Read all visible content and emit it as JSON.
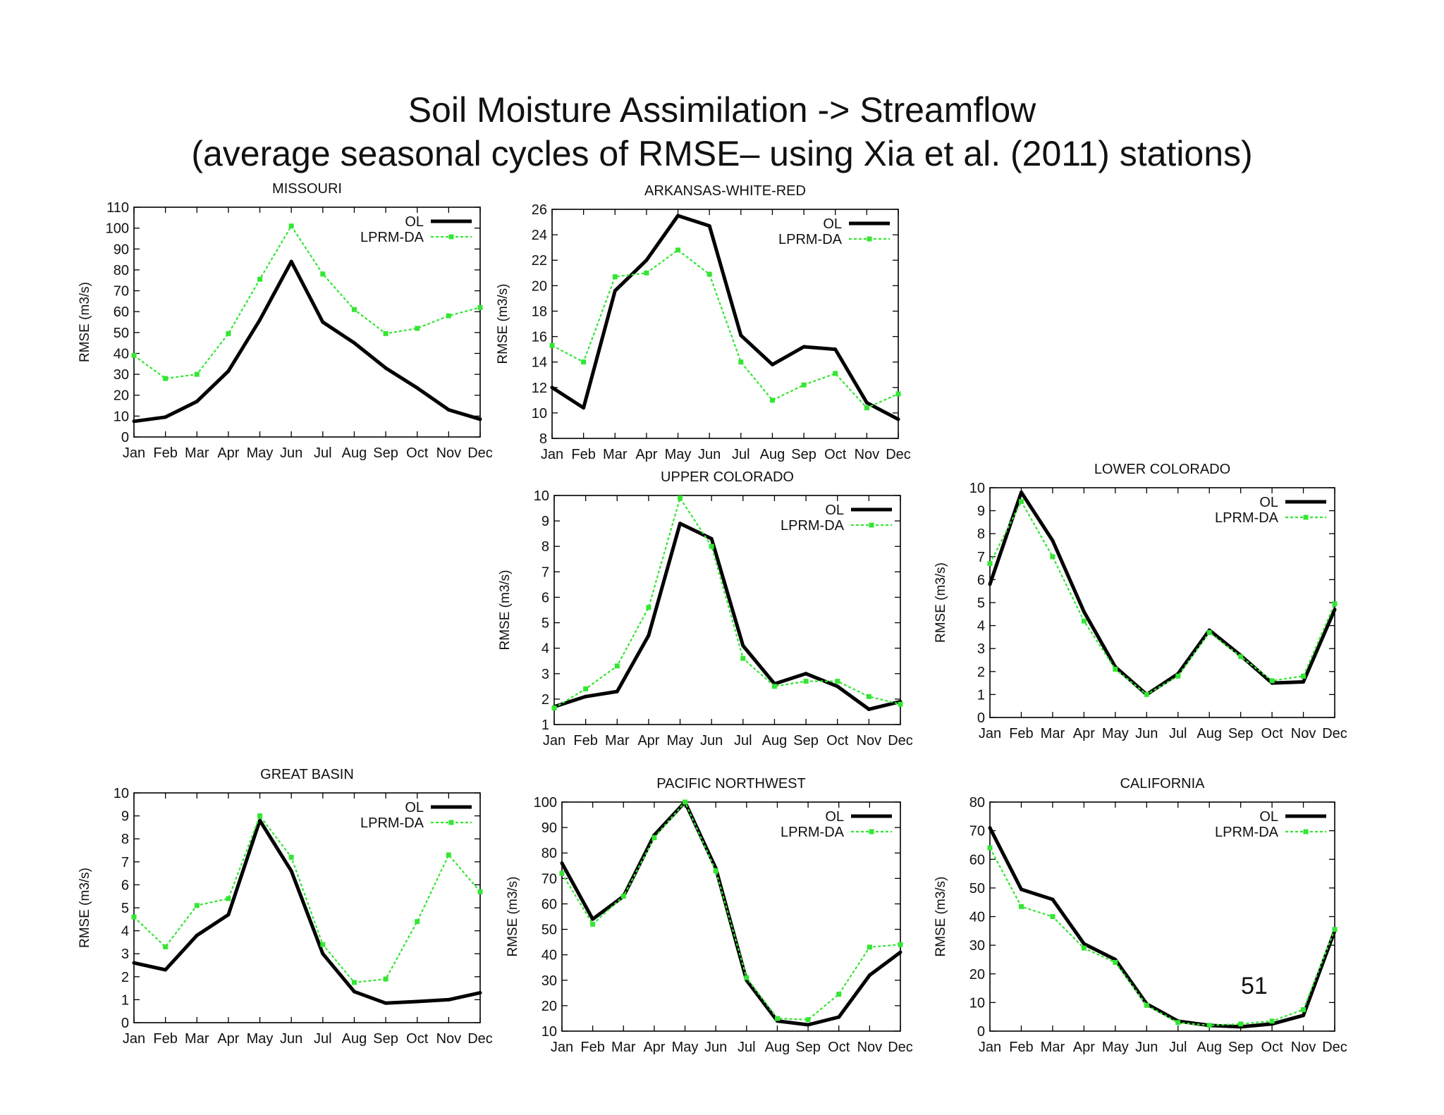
{
  "slide": {
    "title_line1": "Soil Moisture Assimilation -> Streamflow",
    "title_line2": "(average seasonal cycles of RMSE– using Xia et al. (2011) stations)",
    "page_number": "51"
  },
  "colors": {
    "ol": "#000000",
    "lprm_da": "#33e633",
    "axis": "#000000"
  },
  "chart_data": [
    {
      "id": "missouri",
      "type": "line",
      "title": "MISSOURI",
      "xlabel": "",
      "ylabel": "RMSE (m3/s)",
      "categories": [
        "Jan",
        "Feb",
        "Mar",
        "Apr",
        "May",
        "Jun",
        "Jul",
        "Aug",
        "Sep",
        "Oct",
        "Nov",
        "Dec"
      ],
      "ylim": [
        0,
        110
      ],
      "yticks": [
        0,
        10,
        20,
        30,
        40,
        50,
        60,
        70,
        80,
        90,
        100,
        110
      ],
      "legend": "top-right",
      "grid": false,
      "series": [
        {
          "name": "OL",
          "values": [
            7.5,
            9.5,
            17,
            31.5,
            56,
            84,
            55,
            45,
            33,
            23.5,
            13,
            8.5
          ]
        },
        {
          "name": "LPRM-DA",
          "values": [
            39,
            28,
            30,
            49.5,
            75.5,
            101,
            78,
            61,
            49.5,
            52,
            58,
            62
          ]
        }
      ]
    },
    {
      "id": "arkansas",
      "type": "line",
      "title": "ARKANSAS-WHITE-RED",
      "xlabel": "",
      "ylabel": "RMSE (m3/s)",
      "categories": [
        "Jan",
        "Feb",
        "Mar",
        "Apr",
        "May",
        "Jun",
        "Jul",
        "Aug",
        "Sep",
        "Oct",
        "Nov",
        "Dec"
      ],
      "ylim": [
        8,
        26
      ],
      "yticks": [
        8,
        10,
        12,
        14,
        16,
        18,
        20,
        22,
        24,
        26
      ],
      "legend": "top-right",
      "grid": false,
      "series": [
        {
          "name": "OL",
          "values": [
            12,
            10.4,
            19.6,
            22,
            25.5,
            24.7,
            16.1,
            13.8,
            15.2,
            15,
            10.8,
            9.5
          ]
        },
        {
          "name": "LPRM-DA",
          "values": [
            15.3,
            14,
            20.7,
            21,
            22.8,
            20.9,
            14,
            11,
            12.2,
            13.1,
            10.4,
            11.5
          ]
        }
      ]
    },
    {
      "id": "upper-colorado",
      "type": "line",
      "title": "UPPER COLORADO",
      "xlabel": "",
      "ylabel": "RMSE (m3/s)",
      "categories": [
        "Jan",
        "Feb",
        "Mar",
        "Apr",
        "May",
        "Jun",
        "Jul",
        "Aug",
        "Sep",
        "Oct",
        "Nov",
        "Dec"
      ],
      "ylim": [
        1,
        10
      ],
      "yticks": [
        1,
        2,
        3,
        4,
        5,
        6,
        7,
        8,
        9,
        10
      ],
      "legend": "top-right",
      "grid": false,
      "series": [
        {
          "name": "OL",
          "values": [
            1.7,
            2.1,
            2.3,
            4.5,
            8.9,
            8.3,
            4.1,
            2.6,
            3,
            2.5,
            1.6,
            1.9
          ]
        },
        {
          "name": "LPRM-DA",
          "values": [
            1.65,
            2.4,
            3.3,
            5.6,
            9.9,
            8,
            3.6,
            2.5,
            2.7,
            2.7,
            2.1,
            1.8
          ]
        }
      ]
    },
    {
      "id": "lower-colorado",
      "type": "line",
      "title": "LOWER COLORADO",
      "xlabel": "",
      "ylabel": "RMSE (m3/s)",
      "categories": [
        "Jan",
        "Feb",
        "Mar",
        "Apr",
        "May",
        "Jun",
        "Jul",
        "Aug",
        "Sep",
        "Oct",
        "Nov",
        "Dec"
      ],
      "ylim": [
        0,
        10
      ],
      "yticks": [
        0,
        1,
        2,
        3,
        4,
        5,
        6,
        7,
        8,
        9,
        10
      ],
      "legend": "top-right",
      "grid": false,
      "series": [
        {
          "name": "OL",
          "values": [
            5.8,
            9.8,
            7.7,
            4.6,
            2.2,
            1,
            1.9,
            3.8,
            2.7,
            1.5,
            1.55,
            4.7
          ]
        },
        {
          "name": "LPRM-DA",
          "values": [
            6.7,
            9.4,
            7,
            4.2,
            2.1,
            1,
            1.8,
            3.7,
            2.65,
            1.6,
            1.8,
            4.95
          ]
        }
      ]
    },
    {
      "id": "great-basin",
      "type": "line",
      "title": "GREAT BASIN",
      "xlabel": "",
      "ylabel": "RMSE (m3/s)",
      "categories": [
        "Jan",
        "Feb",
        "Mar",
        "Apr",
        "May",
        "Jun",
        "Jul",
        "Aug",
        "Sep",
        "Oct",
        "Nov",
        "Dec"
      ],
      "ylim": [
        0,
        10
      ],
      "yticks": [
        0,
        1,
        2,
        3,
        4,
        5,
        6,
        7,
        8,
        9,
        10
      ],
      "legend": "top-right",
      "grid": false,
      "series": [
        {
          "name": "OL",
          "values": [
            2.6,
            2.3,
            3.8,
            4.7,
            8.8,
            6.6,
            3,
            1.35,
            0.85,
            0.92,
            1,
            1.3
          ]
        },
        {
          "name": "LPRM-DA",
          "values": [
            4.6,
            3.3,
            5.1,
            5.4,
            9,
            7.2,
            3.4,
            1.75,
            1.9,
            4.4,
            7.3,
            5.7
          ]
        }
      ]
    },
    {
      "id": "pacific-northwest",
      "type": "line",
      "title": "PACIFIC NORTHWEST",
      "xlabel": "",
      "ylabel": "RMSE (m3/s)",
      "categories": [
        "Jan",
        "Feb",
        "Mar",
        "Apr",
        "May",
        "Jun",
        "Jul",
        "Aug",
        "Sep",
        "Oct",
        "Nov",
        "Dec"
      ],
      "ylim": [
        10,
        100
      ],
      "yticks": [
        10,
        20,
        30,
        40,
        50,
        60,
        70,
        80,
        90,
        100
      ],
      "legend": "top-right",
      "grid": false,
      "series": [
        {
          "name": "OL",
          "values": [
            76,
            54,
            63,
            87,
            100,
            74,
            30,
            14,
            12.5,
            15.5,
            32,
            41
          ]
        },
        {
          "name": "LPRM-DA",
          "values": [
            72,
            52,
            63,
            86,
            100,
            73,
            31,
            15,
            14.5,
            24.5,
            43,
            44
          ]
        }
      ]
    },
    {
      "id": "california",
      "type": "line",
      "title": "CALIFORNIA",
      "xlabel": "",
      "ylabel": "RMSE (m3/s)",
      "categories": [
        "Jan",
        "Feb",
        "Mar",
        "Apr",
        "May",
        "Jun",
        "Jul",
        "Aug",
        "Sep",
        "Oct",
        "Nov",
        "Dec"
      ],
      "ylim": [
        0,
        80
      ],
      "yticks": [
        0,
        10,
        20,
        30,
        40,
        50,
        60,
        70,
        80
      ],
      "legend": "top-right",
      "grid": false,
      "series": [
        {
          "name": "OL",
          "values": [
            71,
            49.5,
            46,
            30.5,
            25,
            9.5,
            3.5,
            2,
            1.5,
            2.5,
            5.5,
            35
          ]
        },
        {
          "name": "LPRM-DA",
          "values": [
            64,
            43.5,
            40,
            29,
            24,
            9,
            3,
            2,
            2.5,
            3.5,
            7.5,
            35.5
          ]
        }
      ]
    }
  ]
}
